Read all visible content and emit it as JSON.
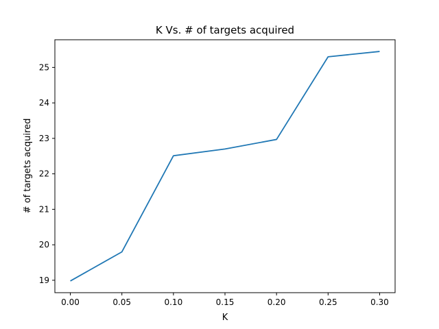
{
  "chart_data": {
    "type": "line",
    "title": "K Vs. # of targets acquired",
    "xlabel": "K",
    "ylabel": "# of targets acquired",
    "x": [
      0.0,
      0.05,
      0.1,
      0.15,
      0.2,
      0.25,
      0.3
    ],
    "series": [
      {
        "values": [
          18.98,
          19.8,
          22.51,
          22.7,
          22.97,
          25.3,
          25.45
        ]
      }
    ],
    "xlim": [
      -0.015,
      0.315
    ],
    "ylim": [
      18.65,
      25.78
    ],
    "xticks": [
      0.0,
      0.05,
      0.1,
      0.15,
      0.2,
      0.25,
      0.3
    ],
    "xtick_labels": [
      "0.00",
      "0.05",
      "0.10",
      "0.15",
      "0.20",
      "0.25",
      "0.30"
    ],
    "yticks": [
      19,
      20,
      21,
      22,
      23,
      24,
      25
    ],
    "ytick_labels": [
      "19",
      "20",
      "21",
      "22",
      "23",
      "24",
      "25"
    ],
    "grid": false,
    "line_color": "#1f77b4"
  }
}
